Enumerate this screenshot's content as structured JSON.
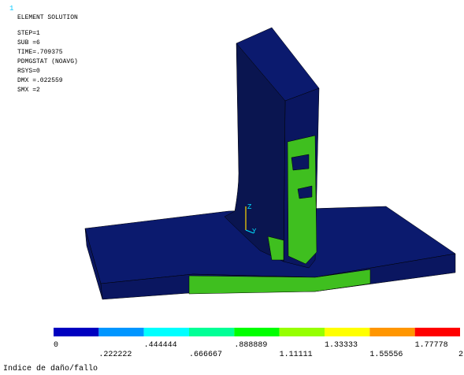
{
  "window_number": "1",
  "header": {
    "title": "ELEMENT SOLUTION",
    "lines": [
      "STEP=1",
      "SUB =6",
      "TIME=.709375",
      "PDMGSTAT (NOAVG)",
      "RSYS=0",
      "DMX =.022559",
      "SMX =2"
    ]
  },
  "triad": {
    "z": "Z",
    "y": "Y"
  },
  "legend": {
    "labels": [
      "0",
      ".222222",
      ".444444",
      ".666667",
      ".888889",
      "1.11111",
      "1.33333",
      "1.55556",
      "1.77778",
      "2"
    ],
    "colors": [
      "#0000c0",
      "#0096ff",
      "#00ffff",
      "#00ff96",
      "#00ff00",
      "#96ff00",
      "#ffff00",
      "#ff9600",
      "#ff0000"
    ],
    "caption": "Indice de daño/fallo"
  }
}
